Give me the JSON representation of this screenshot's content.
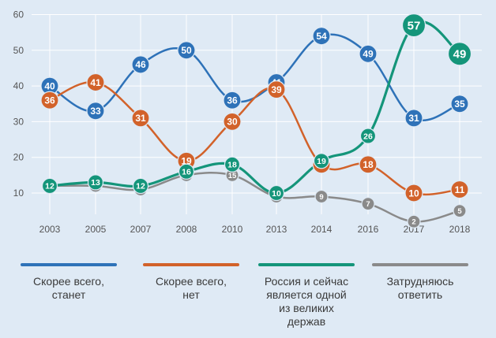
{
  "chart_data": {
    "type": "line",
    "categories": [
      "2003",
      "2005",
      "2007",
      "2008",
      "2010",
      "2013",
      "2014",
      "2016",
      "2017",
      "2018"
    ],
    "y_ticks": [
      10,
      20,
      30,
      40,
      50,
      60
    ],
    "ylim": [
      5,
      62
    ],
    "grid": true,
    "legend_position": "bottom",
    "series": [
      {
        "name": "Скорее всего, станет",
        "color": "#2e72b8",
        "values": [
          40,
          33,
          46,
          50,
          36,
          41,
          54,
          49,
          31,
          35
        ]
      },
      {
        "name": "Скорее всего, нет",
        "color": "#d2622a",
        "values": [
          36,
          41,
          31,
          19,
          30,
          39,
          18,
          18,
          10,
          11
        ]
      },
      {
        "name": "Россия и сейчас является одной из великих держав",
        "color": "#14957a",
        "values": [
          12,
          13,
          12,
          16,
          18,
          10,
          19,
          26,
          57,
          49
        ]
      },
      {
        "name": "Затрудняюсь ответить",
        "color": "#8a8a8a",
        "values": [
          12,
          12,
          11,
          15,
          15,
          9,
          9,
          7,
          2,
          5
        ]
      }
    ]
  },
  "legend": [
    {
      "lines": [
        "Скорее всего,",
        "станет"
      ]
    },
    {
      "lines": [
        "Скорее всего,",
        "нет"
      ]
    },
    {
      "lines": [
        "Россия и сейчас",
        "является одной",
        "из великих",
        "держав"
      ]
    },
    {
      "lines": [
        "Затрудняюсь",
        "ответить"
      ]
    }
  ]
}
